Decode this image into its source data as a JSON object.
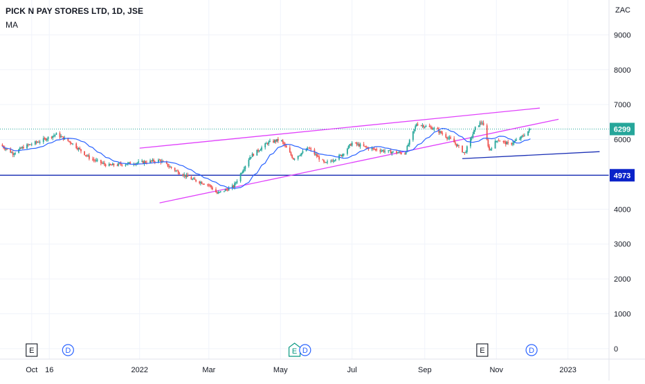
{
  "header": {
    "title": "PICK N PAY STORES LTD, 1D, JSE",
    "indicator": "MA",
    "currency": "ZAC"
  },
  "colors": {
    "up": "#26a69a",
    "down": "#ef5350",
    "ma": "#2962ff",
    "channel": "#e040fb",
    "support": "#1a2fb5",
    "last_price_bg": "#26a69a",
    "level_bg": "#0a22c9",
    "grid": "#f0f3fa",
    "axis_text": "#131722"
  },
  "chart_data": {
    "type": "candlestick",
    "title": "PICK N PAY STORES LTD, 1D, JSE",
    "series": [
      {
        "name": "MA"
      }
    ],
    "ylim": [
      -300,
      10000
    ],
    "yticks": [
      "0",
      "1000",
      "2000",
      "3000",
      "4000",
      "5000",
      "6000",
      "7000",
      "8000",
      "9000"
    ],
    "ytick_values": [
      0,
      1000,
      2000,
      3000,
      4000,
      5000,
      6000,
      7000,
      8000,
      9000
    ],
    "xlim": [
      "2021-09-04",
      "2023-02-05"
    ],
    "xticks": [
      {
        "date": "2021-10-01",
        "label": "Oct"
      },
      {
        "date": "2021-10-16",
        "label": "16"
      },
      {
        "date": "2022-01-01",
        "label": "2022"
      },
      {
        "date": "2022-03-01",
        "label": "Mar"
      },
      {
        "date": "2022-05-01",
        "label": "May"
      },
      {
        "date": "2022-07-01",
        "label": "Jul"
      },
      {
        "date": "2022-09-01",
        "label": "Sep"
      },
      {
        "date": "2022-11-01",
        "label": "Nov"
      },
      {
        "date": "2023-01-01",
        "label": "2023"
      }
    ],
    "price_path": [
      {
        "date": "2021-09-04",
        "price": 5850
      },
      {
        "date": "2021-09-15",
        "price": 5600
      },
      {
        "date": "2021-09-25",
        "price": 5800
      },
      {
        "date": "2021-10-08",
        "price": 5950
      },
      {
        "date": "2021-10-22",
        "price": 6150
      },
      {
        "date": "2021-11-04",
        "price": 5900
      },
      {
        "date": "2021-11-20",
        "price": 5450
      },
      {
        "date": "2021-12-05",
        "price": 5250
      },
      {
        "date": "2021-12-20",
        "price": 5300
      },
      {
        "date": "2022-01-05",
        "price": 5350
      },
      {
        "date": "2022-01-18",
        "price": 5400
      },
      {
        "date": "2022-02-01",
        "price": 5100
      },
      {
        "date": "2022-02-15",
        "price": 4850
      },
      {
        "date": "2022-03-01",
        "price": 4700
      },
      {
        "date": "2022-03-08",
        "price": 4450
      },
      {
        "date": "2022-03-22",
        "price": 4650
      },
      {
        "date": "2022-04-05",
        "price": 5500
      },
      {
        "date": "2022-04-20",
        "price": 5900
      },
      {
        "date": "2022-05-01",
        "price": 6000
      },
      {
        "date": "2022-05-12",
        "price": 5450
      },
      {
        "date": "2022-05-25",
        "price": 5750
      },
      {
        "date": "2022-06-08",
        "price": 5300
      },
      {
        "date": "2022-06-22",
        "price": 5550
      },
      {
        "date": "2022-07-01",
        "price": 5900
      },
      {
        "date": "2022-07-15",
        "price": 5750
      },
      {
        "date": "2022-08-01",
        "price": 5650
      },
      {
        "date": "2022-08-15",
        "price": 5600
      },
      {
        "date": "2022-08-25",
        "price": 6450
      },
      {
        "date": "2022-09-10",
        "price": 6300
      },
      {
        "date": "2022-09-25",
        "price": 5950
      },
      {
        "date": "2022-10-05",
        "price": 5600
      },
      {
        "date": "2022-10-15",
        "price": 6400
      },
      {
        "date": "2022-10-20",
        "price": 6500
      },
      {
        "date": "2022-10-26",
        "price": 5700
      },
      {
        "date": "2022-11-02",
        "price": 6000
      },
      {
        "date": "2022-11-12",
        "price": 5850
      },
      {
        "date": "2022-11-22",
        "price": 6050
      },
      {
        "date": "2022-11-30",
        "price": 6299
      }
    ],
    "trendlines": [
      {
        "kind": "channel-upper",
        "from": {
          "date": "2022-01-01",
          "price": 5750
        },
        "to": {
          "date": "2022-12-08",
          "price": 6900
        }
      },
      {
        "kind": "channel-lower",
        "from": {
          "date": "2022-01-18",
          "price": 4180
        },
        "to": {
          "date": "2022-12-24",
          "price": 6580
        }
      },
      {
        "kind": "support",
        "from": {
          "date": "2022-10-03",
          "price": 5450
        },
        "to": {
          "date": "2023-01-28",
          "price": 5650
        }
      }
    ],
    "horizontal_line": {
      "price": 4973,
      "label": "4973"
    },
    "last_price": {
      "price": 6299,
      "label": "6299"
    },
    "events": [
      {
        "date": "2021-10-01",
        "letter": "E",
        "kind": "earnings"
      },
      {
        "date": "2021-11-01",
        "letter": "D",
        "kind": "dividend"
      },
      {
        "date": "2022-05-13",
        "letter": "E",
        "kind": "earnings-green"
      },
      {
        "date": "2022-05-22",
        "letter": "D",
        "kind": "dividend"
      },
      {
        "date": "2022-10-20",
        "letter": "E",
        "kind": "earnings"
      },
      {
        "date": "2022-12-01",
        "letter": "D",
        "kind": "dividend"
      }
    ]
  }
}
